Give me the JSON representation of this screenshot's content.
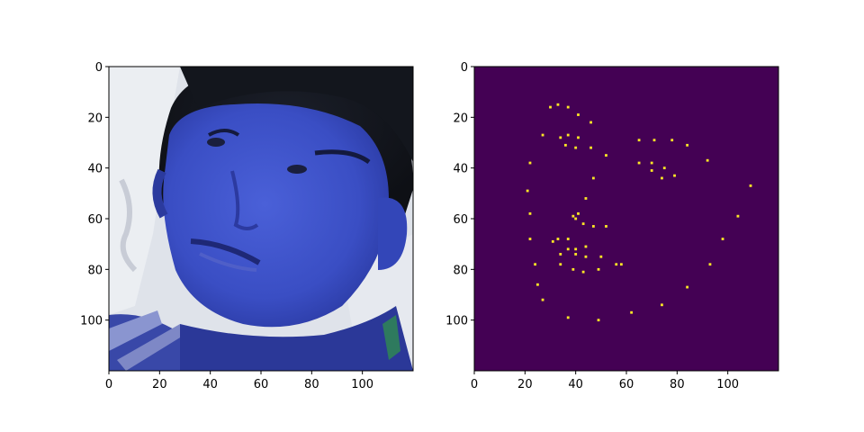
{
  "chart_data": [
    {
      "type": "image",
      "content": "blue-tinted face photo",
      "xlim": [
        0,
        120
      ],
      "ylim": [
        120,
        0
      ],
      "x_ticks": [
        "0",
        "20",
        "40",
        "60",
        "80",
        "100"
      ],
      "y_ticks": [
        "0",
        "20",
        "40",
        "60",
        "80",
        "100"
      ]
    },
    {
      "type": "heatmap",
      "background_color": "#440154",
      "point_color": "#fde725",
      "xlim": [
        0,
        120
      ],
      "ylim": [
        120,
        0
      ],
      "x_ticks": [
        "0",
        "20",
        "40",
        "60",
        "80",
        "100"
      ],
      "y_ticks": [
        "0",
        "20",
        "40",
        "60",
        "80",
        "100"
      ],
      "points": [
        [
          30,
          16
        ],
        [
          33,
          15
        ],
        [
          37,
          16
        ],
        [
          41,
          19
        ],
        [
          46,
          22
        ],
        [
          27,
          27
        ],
        [
          34,
          28
        ],
        [
          37,
          27
        ],
        [
          41,
          28
        ],
        [
          36,
          31
        ],
        [
          40,
          32
        ],
        [
          46,
          32
        ],
        [
          52,
          35
        ],
        [
          47,
          44
        ],
        [
          65,
          29
        ],
        [
          71,
          29
        ],
        [
          78,
          29
        ],
        [
          84,
          31
        ],
        [
          65,
          38
        ],
        [
          70,
          38
        ],
        [
          70,
          41
        ],
        [
          75,
          40
        ],
        [
          74,
          44
        ],
        [
          79,
          43
        ],
        [
          92,
          37
        ],
        [
          109,
          47
        ],
        [
          22,
          38
        ],
        [
          21,
          49
        ],
        [
          22,
          58
        ],
        [
          22,
          68
        ],
        [
          24,
          78
        ],
        [
          25,
          86
        ],
        [
          27,
          92
        ],
        [
          44,
          52
        ],
        [
          39,
          59
        ],
        [
          40,
          60
        ],
        [
          41,
          58
        ],
        [
          43,
          62
        ],
        [
          47,
          63
        ],
        [
          52,
          63
        ],
        [
          31,
          69
        ],
        [
          33,
          68
        ],
        [
          37,
          68
        ],
        [
          34,
          74
        ],
        [
          37,
          72
        ],
        [
          40,
          72
        ],
        [
          40,
          74
        ],
        [
          44,
          71
        ],
        [
          44,
          75
        ],
        [
          50,
          75
        ],
        [
          34,
          78
        ],
        [
          39,
          80
        ],
        [
          43,
          81
        ],
        [
          49,
          80
        ],
        [
          56,
          78
        ],
        [
          58,
          78
        ],
        [
          98,
          68
        ],
        [
          104,
          59
        ],
        [
          93,
          78
        ],
        [
          84,
          87
        ],
        [
          74,
          94
        ],
        [
          62,
          97
        ],
        [
          49,
          100
        ],
        [
          37,
          99
        ]
      ]
    }
  ]
}
